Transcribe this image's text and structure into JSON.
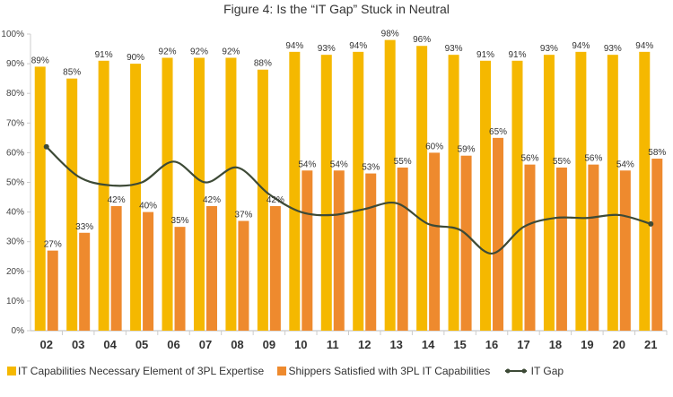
{
  "title": "Figure 4:  Is the “IT Gap” Stuck in Neutral",
  "chart_data": {
    "type": "bar",
    "categories": [
      "02",
      "03",
      "04",
      "05",
      "06",
      "07",
      "08",
      "09",
      "10",
      "11",
      "12",
      "13",
      "14",
      "15",
      "16",
      "17",
      "18",
      "19",
      "20",
      "21"
    ],
    "ylim": [
      0,
      100
    ],
    "yticks": [
      "0%",
      "10%",
      "20%",
      "30%",
      "40%",
      "50%",
      "60%",
      "70%",
      "80%",
      "90%",
      "100%"
    ],
    "grid": false,
    "legend_position": "bottom",
    "series": [
      {
        "name": "IT Capabilities Necessary Element of 3PL Expertise",
        "kind": "bar",
        "color": "#F5B800",
        "values": [
          89,
          85,
          91,
          90,
          92,
          92,
          92,
          88,
          94,
          93,
          94,
          98,
          96,
          93,
          91,
          91,
          93,
          94,
          93,
          94
        ],
        "labels": [
          "89%",
          "85%",
          "91%",
          "90%",
          "92%",
          "92%",
          "92%",
          "88%",
          "94%",
          "93%",
          "94%",
          "98%",
          "96%",
          "93%",
          "91%",
          "91%",
          "93%",
          "94%",
          "93%",
          "94%"
        ]
      },
      {
        "name": "Shippers Satisfied with 3PL IT Capabilities",
        "kind": "bar",
        "color": "#EE8A2E",
        "values": [
          27,
          33,
          42,
          40,
          35,
          42,
          37,
          42,
          54,
          54,
          53,
          55,
          60,
          59,
          65,
          56,
          55,
          56,
          54,
          58
        ],
        "labels": [
          "27%",
          "33%",
          "42%",
          "40%",
          "35%",
          "42%",
          "37%",
          "42%",
          "54%",
          "54%",
          "53%",
          "55%",
          "60%",
          "59%",
          "65%",
          "56%",
          "55%",
          "56%",
          "54%",
          "58%"
        ]
      },
      {
        "name": "IT Gap",
        "kind": "line",
        "color": "#3D4A36",
        "values": [
          62,
          52,
          49,
          50,
          57,
          50,
          55,
          46,
          40,
          39,
          41,
          43,
          36,
          34,
          26,
          35,
          38,
          38,
          39,
          36
        ]
      }
    ]
  }
}
